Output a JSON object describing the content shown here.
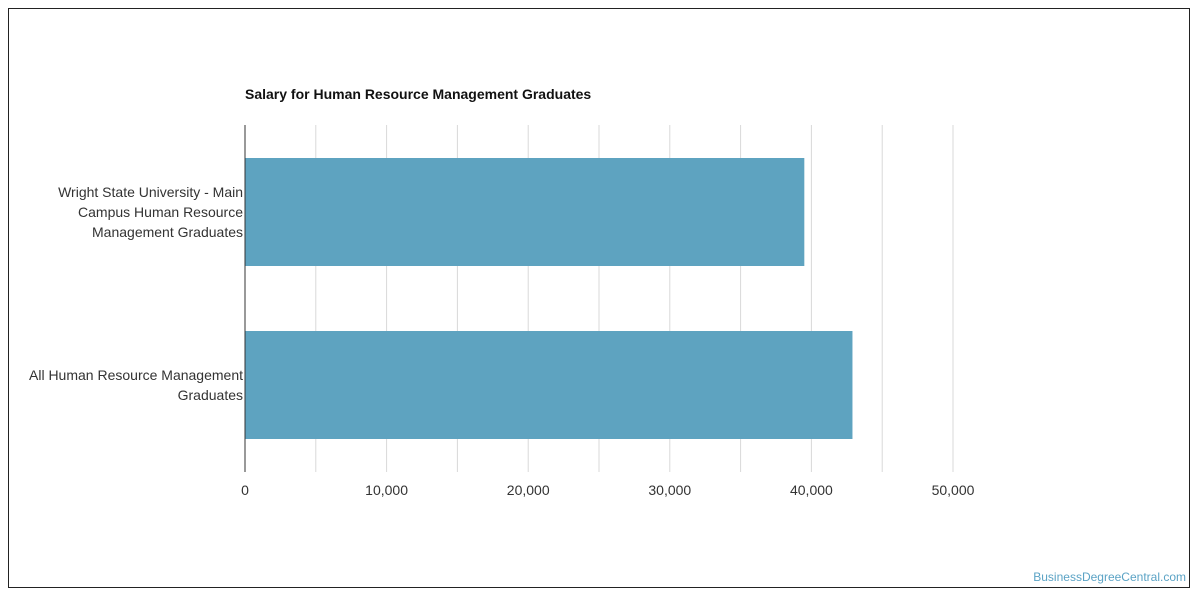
{
  "chart_data": {
    "type": "bar",
    "orientation": "horizontal",
    "title": "Salary for Human Resource Management Graduates",
    "categories": [
      "Wright State University - Main Campus Human Resource Management Graduates",
      "All Human Resource Management Graduates"
    ],
    "category_lines": [
      [
        "Wright State University - Main",
        "Campus Human Resource",
        "Management Graduates"
      ],
      [
        "All Human Resource Management",
        "Graduates"
      ]
    ],
    "values": [
      39500,
      42900
    ],
    "xlim": [
      0,
      50000
    ],
    "x_ticks": [
      0,
      10000,
      20000,
      30000,
      40000,
      50000
    ],
    "x_tick_labels": [
      "0",
      "10,000",
      "20,000",
      "30,000",
      "40,000",
      "50,000"
    ],
    "xlabel": "",
    "ylabel": "",
    "grid": true,
    "legend": "none",
    "bar_color": "#5ea3c0"
  },
  "footer": {
    "watermark": "BusinessDegreeCentral.com"
  }
}
